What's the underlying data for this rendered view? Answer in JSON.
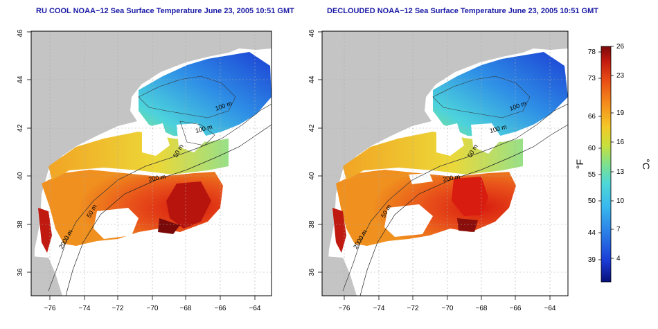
{
  "panels": [
    {
      "title": "RU COOL NOAA−12 Sea Surface Temperature June 23, 2005 10:51 GMT",
      "x_ticks": [
        "−76",
        "−74",
        "−72",
        "−70",
        "−68",
        "−66",
        "−64"
      ],
      "y_ticks": [
        "36",
        "38",
        "40",
        "42",
        "44",
        "46"
      ],
      "contour_labels": [
        "100 m",
        "100 m",
        "50 m",
        "200 m",
        "50 m",
        "2000 m"
      ]
    },
    {
      "title": "DECLOUDED NOAA−12 Sea Surface Temperature June 23, 2005 10:51 GMT",
      "x_ticks": [
        "−76",
        "−74",
        "−72",
        "−70",
        "−68",
        "−66",
        "−64"
      ],
      "y_ticks": [
        "36",
        "38",
        "40",
        "42",
        "44",
        "46"
      ],
      "contour_labels": [
        "100 m",
        "100 m",
        "50 m",
        "200 m",
        "50 m",
        "2000 m"
      ]
    }
  ],
  "colorbar": {
    "fahrenheit_label": "°F",
    "celsius_label": "°C",
    "fahrenheit_ticks": [
      "78",
      "73",
      "66",
      "60",
      "55",
      "50",
      "44",
      "39"
    ],
    "celsius_ticks": [
      "26",
      "23",
      "19",
      "16",
      "13",
      "10",
      "7",
      "4"
    ],
    "celsius_range": [
      1,
      26
    ],
    "colors": [
      "#08107a",
      "#1a3cd6",
      "#2a7ae6",
      "#38b8ee",
      "#4ed8d6",
      "#7ee08c",
      "#c8e03c",
      "#f4c828",
      "#f48a1c",
      "#e84a14",
      "#c01a10",
      "#7a0a0a"
    ]
  },
  "colors": {
    "land": "#c4c4c4",
    "cloud": "#ffffff",
    "title": "#1a1aa6",
    "frame": "#000000",
    "grid": "#aaaaaa"
  }
}
